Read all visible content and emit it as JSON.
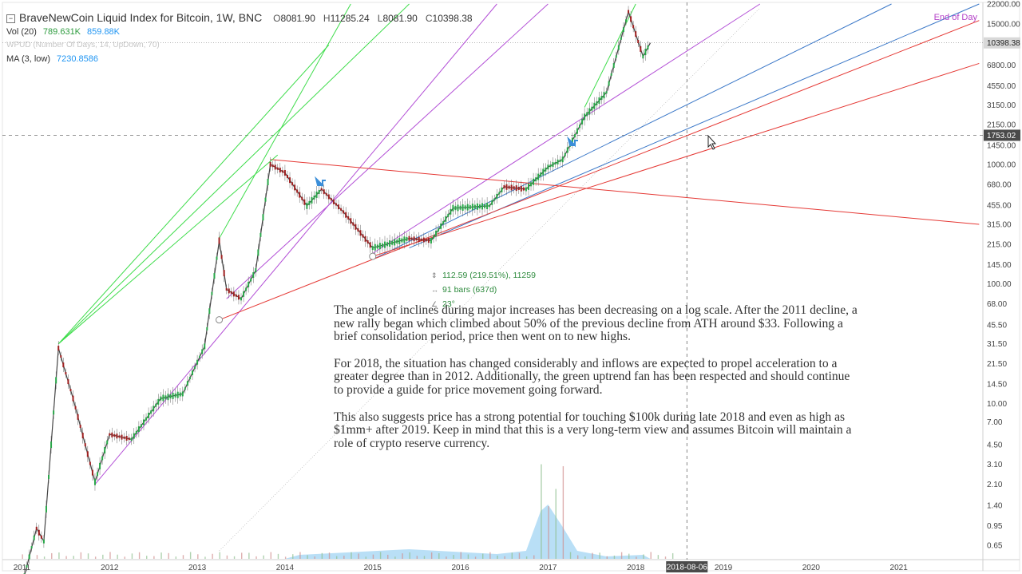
{
  "header": {
    "title": "BraveNewCoin Liquid Index for Bitcoin, 1W, BNC",
    "toggle": "−",
    "open_label": "O",
    "open": "8081.90",
    "high_label": "H",
    "high": "11285.24",
    "low_label": "L",
    "low": "8081.90",
    "close_label": "C",
    "close": "10398.38"
  },
  "indicators": {
    "vol_label": "Vol (20)",
    "vol_value1": "789.631K",
    "vol_value2": "859.88K",
    "faded_label": "WPUD (Number Of Days, 14, UpDown, 70)",
    "ma_label": "MA (3, low)",
    "ma_value": "7230.8586"
  },
  "end_of_day": "End of Day",
  "measure": {
    "range": "112.59 (219.51%), 11259",
    "bars": "91 bars (637d)",
    "angle": "23°"
  },
  "note": {
    "p1": "The angle of inclines during major increases has been decreasing on a log scale. After the 2011 decline, a new rally began which climbed about 50% of the previous decline from ATH around $33. Following a brief consolidation period, price then went on to new highs.",
    "p2": "For 2018, the situation has changed considerably and inflows are expected to propel acceleration to a greater degree than in 2012. Additionally, the green uptrend fan has been respected and should continue to provide a guide for price movement going forward.",
    "p3": "This also suggests price has a strong potential for touching $100k during late 2018 and even as high as $1mm+ after 2019. Keep in mind that this is a very long-term view and assumes Bitcoin will maintain a role of crypto reserve currency."
  },
  "axis": {
    "price_ticks": [
      "22000.00",
      "15000.00",
      "10398.38",
      "6800.00",
      "4550.00",
      "3150.00",
      "2150.00",
      "1450.00",
      "1000.00",
      "680.00",
      "455.00",
      "315.00",
      "215.00",
      "145.00",
      "100.00",
      "68.00",
      "45.50",
      "31.50",
      "21.50",
      "14.50",
      "10.00",
      "7.00",
      "4.50",
      "3.10",
      "2.10",
      "1.40",
      "0.95",
      "0.65"
    ],
    "crosshair_price": "1753.02",
    "crosshair_date": "2018-08-06",
    "year_ticks": [
      "2011",
      "2012",
      "2013",
      "2014",
      "2015",
      "2016",
      "2017",
      "2018",
      "2019",
      "2020",
      "2021",
      "20"
    ]
  },
  "chart_data": {
    "type": "candlestick",
    "title": "BraveNewCoin Liquid Index for Bitcoin, 1W, BNC",
    "scale": "log",
    "y_range": [
      0.5,
      22000
    ],
    "x_range": [
      "2010-10",
      "2021-12"
    ],
    "last_price": 10398.38,
    "price_path": [
      {
        "x": "2011-01",
        "y": 0.3
      },
      {
        "x": "2011-03",
        "y": 0.9
      },
      {
        "x": "2011-04",
        "y": 0.7
      },
      {
        "x": "2011-06",
        "y": 29
      },
      {
        "x": "2011-08",
        "y": 11
      },
      {
        "x": "2011-11",
        "y": 2.2
      },
      {
        "x": "2012-01",
        "y": 5.5
      },
      {
        "x": "2012-04",
        "y": 5
      },
      {
        "x": "2012-08",
        "y": 11
      },
      {
        "x": "2012-11",
        "y": 12
      },
      {
        "x": "2013-02",
        "y": 30
      },
      {
        "x": "2013-04",
        "y": 230
      },
      {
        "x": "2013-05",
        "y": 90
      },
      {
        "x": "2013-07",
        "y": 75
      },
      {
        "x": "2013-09",
        "y": 130
      },
      {
        "x": "2013-11",
        "y": 1000
      },
      {
        "x": "2014-01",
        "y": 850
      },
      {
        "x": "2014-04",
        "y": 450
      },
      {
        "x": "2014-06",
        "y": 620
      },
      {
        "x": "2014-09",
        "y": 400
      },
      {
        "x": "2015-01",
        "y": 200
      },
      {
        "x": "2015-06",
        "y": 240
      },
      {
        "x": "2015-09",
        "y": 230
      },
      {
        "x": "2015-12",
        "y": 430
      },
      {
        "x": "2016-05",
        "y": 450
      },
      {
        "x": "2016-07",
        "y": 650
      },
      {
        "x": "2016-10",
        "y": 620
      },
      {
        "x": "2017-01",
        "y": 950
      },
      {
        "x": "2017-03",
        "y": 1100
      },
      {
        "x": "2017-06",
        "y": 2500
      },
      {
        "x": "2017-09",
        "y": 4000
      },
      {
        "x": "2017-12",
        "y": 19000
      },
      {
        "x": "2018-02",
        "y": 8000
      },
      {
        "x": "2018-03",
        "y": 10398
      }
    ],
    "trendlines": {
      "green_fan": [
        {
          "from": {
            "x": "2011-06",
            "y": 31.5
          },
          "to": {
            "x": "2013-12",
            "y": 1200
          }
        },
        {
          "from": {
            "x": "2011-06",
            "y": 31.5
          },
          "to": {
            "x": "2014-07",
            "y": 10000
          }
        },
        {
          "from": {
            "x": "2011-06",
            "y": 31.5
          },
          "to": {
            "x": "2015-06",
            "y": 22000
          }
        },
        {
          "from": {
            "x": "2013-04",
            "y": 240
          },
          "to": {
            "x": "2014-10",
            "y": 22000
          }
        },
        {
          "from": {
            "x": "2017-06",
            "y": 3000
          },
          "to": {
            "x": "2018-01",
            "y": 22000
          }
        }
      ],
      "purple_channels": [
        {
          "from": {
            "x": "2011-11",
            "y": 2.1
          },
          "to": {
            "x": "2016-06",
            "y": 22000
          }
        },
        {
          "from": {
            "x": "2013-05",
            "y": 75
          },
          "to": {
            "x": "2017-01",
            "y": 22000
          }
        },
        {
          "from": {
            "x": "2015-01",
            "y": 180
          },
          "to": {
            "x": "2019-06",
            "y": 22000
          }
        }
      ],
      "red_lines": [
        {
          "from": {
            "x": "2013-04",
            "y": 50
          },
          "to": {
            "x": "2021-12",
            "y": 16000
          }
        },
        {
          "from": {
            "x": "2013-11",
            "y": 1100
          },
          "to": {
            "x": "2021-12",
            "y": 315
          }
        },
        {
          "from": {
            "x": "2015-01",
            "y": 170
          },
          "to": {
            "x": "2021-12",
            "y": 7000
          }
        }
      ],
      "blue_lines": [
        {
          "from": {
            "x": "2015-01",
            "y": 160
          },
          "to": {
            "x": "2020-12",
            "y": 22000
          }
        },
        {
          "from": {
            "x": "2015-06",
            "y": 200
          },
          "to": {
            "x": "2021-12",
            "y": 22000
          }
        }
      ]
    },
    "volume_note": "volume histogram with 20-period moving average area at bottom"
  }
}
